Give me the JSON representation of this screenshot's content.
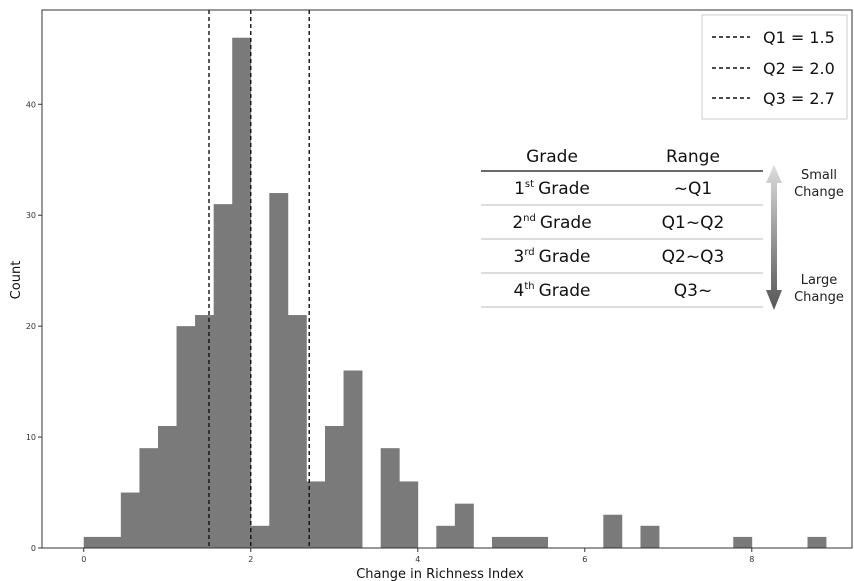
{
  "chart_data": {
    "type": "bar",
    "subtype": "histogram",
    "xlabel": "Change in Richness Index",
    "ylabel": "Count",
    "xlim": [
      -0.5,
      9.2
    ],
    "ylim": [
      0,
      48.5
    ],
    "bin_width": 0.222,
    "bar_color": "#7a7a7a",
    "xticks": [
      0,
      2,
      4,
      6,
      8
    ],
    "yticks": [
      0,
      10,
      20,
      30,
      40
    ],
    "bins": [
      {
        "x0": 0.0,
        "count": 1
      },
      {
        "x0": 0.222,
        "count": 1
      },
      {
        "x0": 0.444,
        "count": 5
      },
      {
        "x0": 0.667,
        "count": 9
      },
      {
        "x0": 0.889,
        "count": 11
      },
      {
        "x0": 1.111,
        "count": 20
      },
      {
        "x0": 1.333,
        "count": 21
      },
      {
        "x0": 1.556,
        "count": 31
      },
      {
        "x0": 1.778,
        "count": 46
      },
      {
        "x0": 2.0,
        "count": 2
      },
      {
        "x0": 2.222,
        "count": 32
      },
      {
        "x0": 2.444,
        "count": 21
      },
      {
        "x0": 2.667,
        "count": 6
      },
      {
        "x0": 2.889,
        "count": 11
      },
      {
        "x0": 3.111,
        "count": 16
      },
      {
        "x0": 3.333,
        "count": 0
      },
      {
        "x0": 3.556,
        "count": 9
      },
      {
        "x0": 3.778,
        "count": 6
      },
      {
        "x0": 4.0,
        "count": 0
      },
      {
        "x0": 4.222,
        "count": 2
      },
      {
        "x0": 4.444,
        "count": 4
      },
      {
        "x0": 4.667,
        "count": 0
      },
      {
        "x0": 4.889,
        "count": 1
      },
      {
        "x0": 5.111,
        "count": 1
      },
      {
        "x0": 5.333,
        "count": 1
      },
      {
        "x0": 5.556,
        "count": 0
      },
      {
        "x0": 5.778,
        "count": 0
      },
      {
        "x0": 6.0,
        "count": 0
      },
      {
        "x0": 6.222,
        "count": 3
      },
      {
        "x0": 6.444,
        "count": 0
      },
      {
        "x0": 6.667,
        "count": 2
      },
      {
        "x0": 6.889,
        "count": 0
      },
      {
        "x0": 7.111,
        "count": 0
      },
      {
        "x0": 7.333,
        "count": 0
      },
      {
        "x0": 7.556,
        "count": 0
      },
      {
        "x0": 7.778,
        "count": 1
      },
      {
        "x0": 8.0,
        "count": 0
      },
      {
        "x0": 8.222,
        "count": 0
      },
      {
        "x0": 8.444,
        "count": 0
      },
      {
        "x0": 8.667,
        "count": 1
      }
    ],
    "quartile_lines": [
      {
        "name": "Q1",
        "value": 1.5,
        "label": "Q1 = 1.5"
      },
      {
        "name": "Q2",
        "value": 2.0,
        "label": "Q2 = 2.0"
      },
      {
        "name": "Q3",
        "value": 2.7,
        "label": "Q3 = 2.7"
      }
    ],
    "legend_position": "top-right",
    "grade_table": {
      "headers": [
        "Grade",
        "Range"
      ],
      "rows": [
        {
          "num": "1",
          "sup": "st",
          "word": "Grade",
          "range": "~Q1"
        },
        {
          "num": "2",
          "sup": "nd",
          "word": "Grade",
          "range": "Q1~Q2"
        },
        {
          "num": "3",
          "sup": "rd",
          "word": "Grade",
          "range": "Q2~Q3"
        },
        {
          "num": "4",
          "sup": "th",
          "word": "Grade",
          "range": "Q3~"
        }
      ],
      "arrow_top_label": [
        "Small",
        "Change"
      ],
      "arrow_bottom_label": [
        "Large",
        "Change"
      ]
    }
  }
}
